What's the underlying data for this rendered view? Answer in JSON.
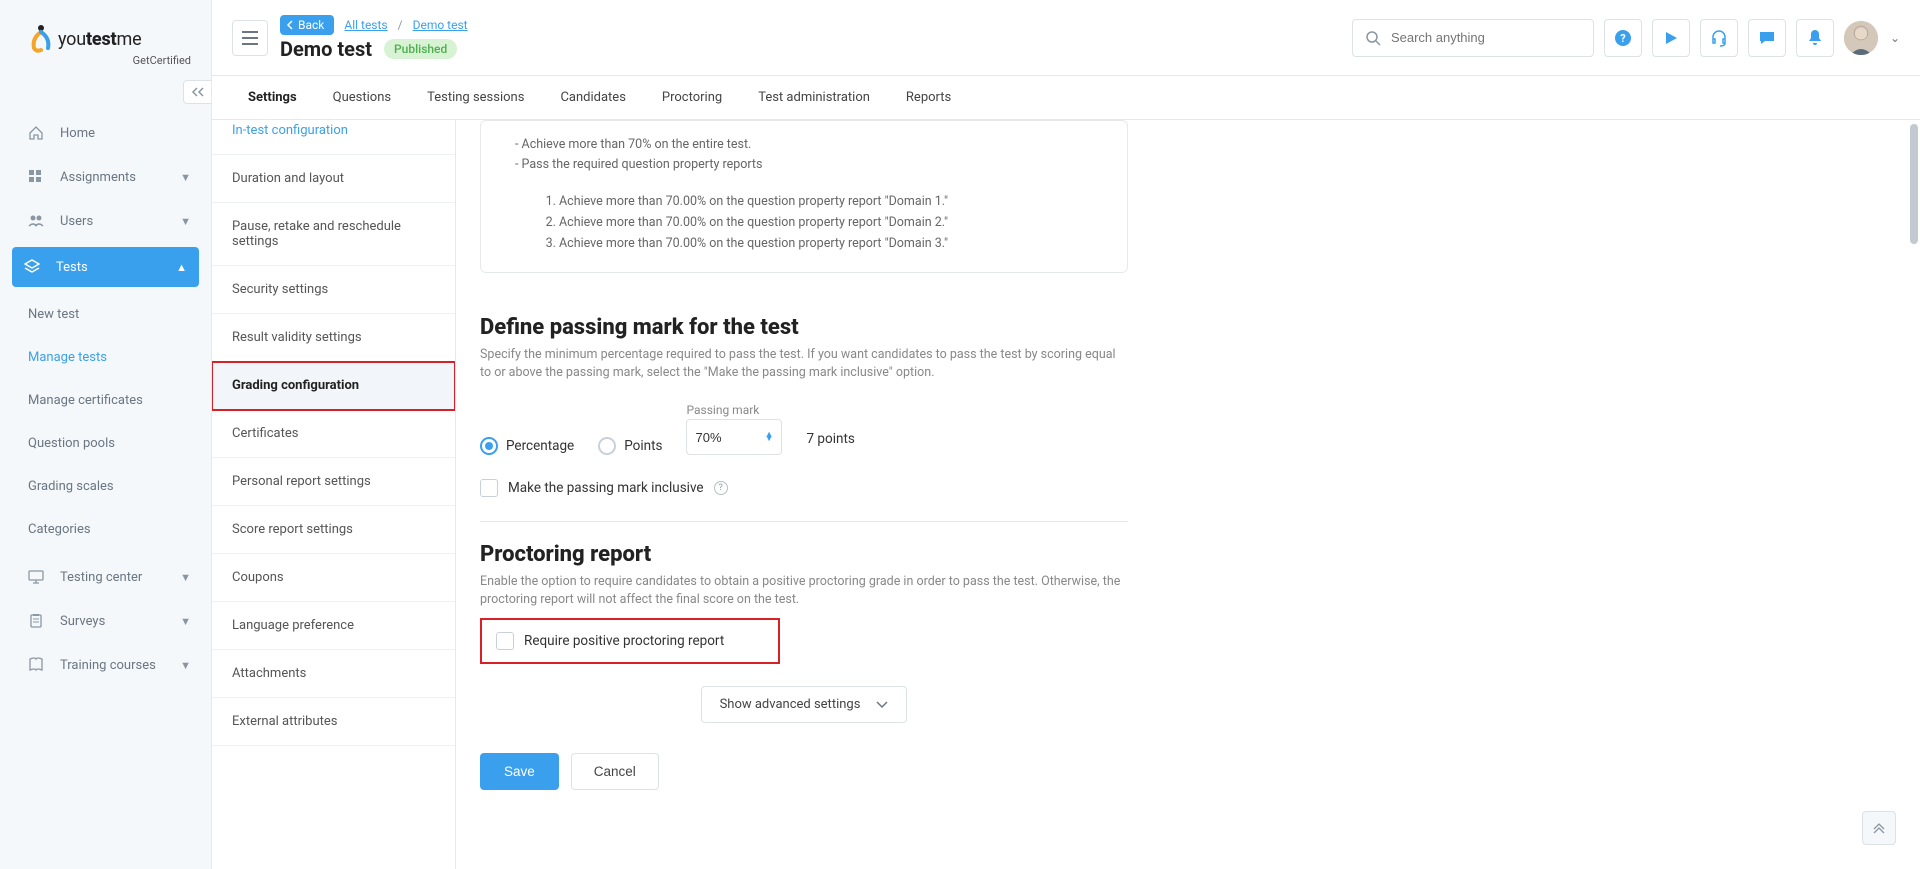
{
  "brand": {
    "name_a": "you",
    "name_b": "test",
    "name_c": "me",
    "sub": "GetCertified"
  },
  "sidebar_items": [
    {
      "label": "Home",
      "icon": "home"
    },
    {
      "label": "Assignments",
      "icon": "grid",
      "expandable": true
    },
    {
      "label": "Users",
      "icon": "users",
      "expandable": true
    }
  ],
  "tests_item": {
    "label": "Tests"
  },
  "tests_sub": [
    {
      "label": "New test"
    },
    {
      "label": "Manage tests",
      "highlight": true
    },
    {
      "label": "Manage certificates"
    },
    {
      "label": "Question pools"
    },
    {
      "label": "Grading scales"
    },
    {
      "label": "Categories"
    }
  ],
  "sidebar_items_after": [
    {
      "label": "Testing center",
      "icon": "monitor",
      "expandable": true
    },
    {
      "label": "Surveys",
      "icon": "clipboard",
      "expandable": true
    },
    {
      "label": "Training courses",
      "icon": "book",
      "expandable": true
    }
  ],
  "topbar": {
    "back": "Back",
    "crumb1": "All tests",
    "crumb2": "Demo test",
    "title": "Demo test",
    "badge": "Published",
    "search_placeholder": "Search anything"
  },
  "tabs": [
    "Settings",
    "Questions",
    "Testing sessions",
    "Candidates",
    "Proctoring",
    "Test administration",
    "Reports"
  ],
  "active_tab": 0,
  "settings_list": [
    {
      "label": "In-test configuration",
      "cutoff": true
    },
    {
      "label": "Duration and layout"
    },
    {
      "label": "Pause, retake and reschedule settings"
    },
    {
      "label": "Security settings"
    },
    {
      "label": "Result validity settings"
    },
    {
      "label": "Grading configuration",
      "selected": true
    },
    {
      "label": "Certificates"
    },
    {
      "label": "Personal report settings"
    },
    {
      "label": "Score report settings"
    },
    {
      "label": "Coupons"
    },
    {
      "label": "Language preference"
    },
    {
      "label": "Attachments"
    },
    {
      "label": "External attributes"
    }
  ],
  "info_card": {
    "lines": [
      "- Achieve more than 70% on the entire test.",
      "- Pass the required question property reports"
    ],
    "items": [
      "Achieve more than 70.00% on the question property report \"Domain 1.\"",
      "Achieve more than 70.00% on the question property report \"Domain 2.\"",
      "Achieve more than 70.00% on the question property report \"Domain 3.\""
    ]
  },
  "passing": {
    "title": "Define passing mark for the test",
    "sub": "Specify the minimum percentage required to pass the test. If you want candidates to pass the test by scoring equal to or above the passing mark, select the \"Make the passing mark inclusive\" option.",
    "percentage_label": "Percentage",
    "points_label": "Points",
    "field_label": "Passing mark",
    "value": "70%",
    "points_text": "7 points",
    "inclusive_label": "Make the passing mark inclusive"
  },
  "proctoring": {
    "title": "Proctoring report",
    "sub": "Enable the option to require candidates to obtain a positive proctoring grade in order to pass the test. Otherwise, the proctoring report will not affect the final score on the test.",
    "require_label": "Require positive proctoring report"
  },
  "advanced_label": "Show advanced settings",
  "buttons": {
    "save": "Save",
    "cancel": "Cancel"
  },
  "colors": {
    "accent": "#3aa0ed",
    "badge_bg": "#d8f3d3",
    "badge_fg": "#4caf50",
    "highlight_border": "#d72027",
    "sidebar_bg": "#f5f8fb"
  }
}
